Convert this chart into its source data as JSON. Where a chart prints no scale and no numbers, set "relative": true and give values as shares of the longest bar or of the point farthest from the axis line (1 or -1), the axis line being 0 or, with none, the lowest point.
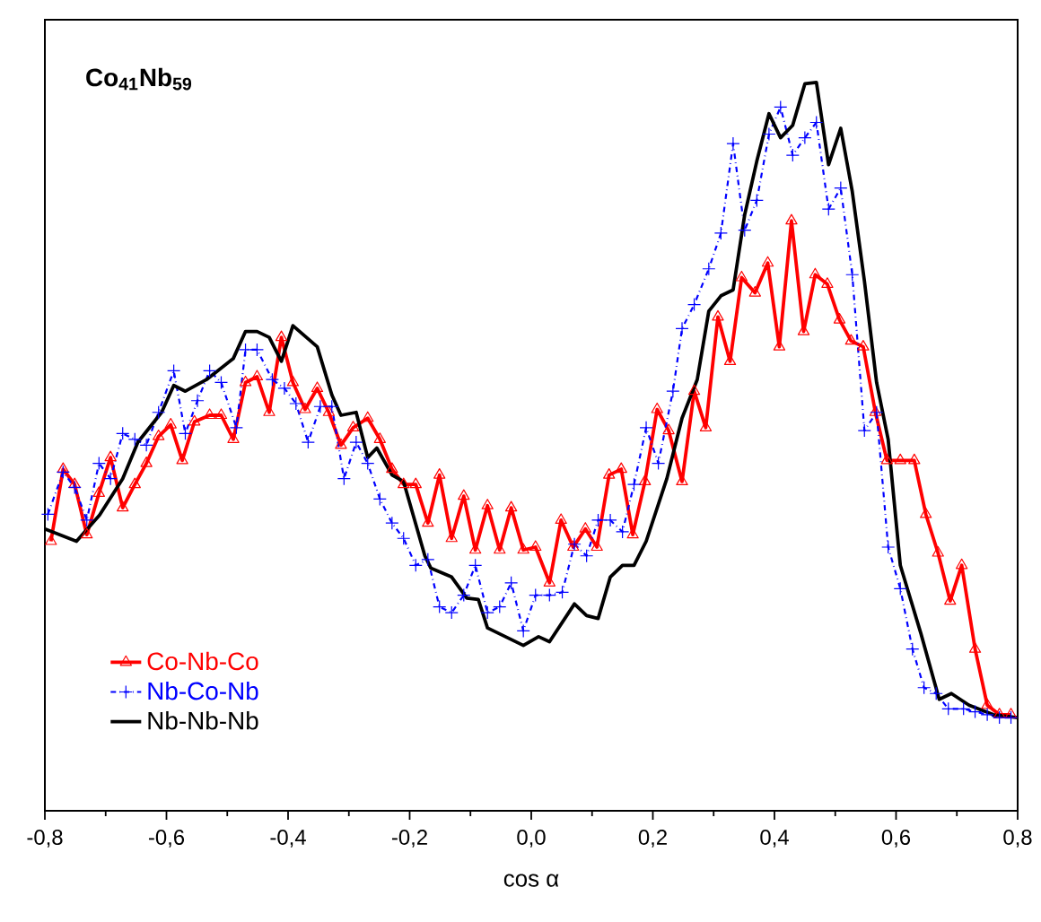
{
  "chart_data": {
    "type": "line",
    "title": "Co$_{41}$Nb$_{59}$",
    "xlabel": "cos α",
    "relative": true,
    "xlim": [
      -0.8,
      0.8
    ],
    "xticks": [
      {
        "value": -0.8,
        "label": "-0,8"
      },
      {
        "value": -0.6,
        "label": "-0,6"
      },
      {
        "value": -0.4,
        "label": "-0,4"
      },
      {
        "value": -0.2,
        "label": "-0,2"
      },
      {
        "value": 0,
        "label": "0,0"
      },
      {
        "value": 0.2,
        "label": "0,2"
      },
      {
        "value": 0.4,
        "label": "0,4"
      },
      {
        "value": 0.6,
        "label": "0,6"
      },
      {
        "value": 0.8,
        "label": "0,8"
      }
    ],
    "tick_labels": "x",
    "legend": "bottom left",
    "series": [
      {
        "name": "Co-Nb-Co",
        "color": "#ff0000",
        "marker": "triangle",
        "line_style": "solid",
        "x": [
          -0.79,
          -0.77,
          -0.751,
          -0.731,
          -0.711,
          -0.692,
          -0.672,
          -0.652,
          -0.633,
          -0.613,
          -0.593,
          -0.574,
          -0.554,
          -0.529,
          -0.51,
          -0.49,
          -0.47,
          -0.451,
          -0.431,
          -0.411,
          -0.392,
          -0.372,
          -0.352,
          -0.333,
          -0.313,
          -0.293,
          -0.269,
          -0.249,
          -0.229,
          -0.21,
          -0.19,
          -0.17,
          -0.151,
          -0.131,
          -0.111,
          -0.092,
          -0.072,
          -0.052,
          -0.033,
          -0.013,
          0.007,
          0.03,
          0.049,
          0.069,
          0.089,
          0.108,
          0.128,
          0.148,
          0.167,
          0.187,
          0.207,
          0.226,
          0.248,
          0.268,
          0.287,
          0.307,
          0.327,
          0.346,
          0.368,
          0.389,
          0.408,
          0.428,
          0.448,
          0.467,
          0.487,
          0.507,
          0.526,
          0.546,
          0.566,
          0.585,
          0.607,
          0.63,
          0.649,
          0.669,
          0.689,
          0.708,
          0.73,
          0.75,
          0.77,
          0.789
        ],
        "values": [
          0.37,
          0.469,
          0.448,
          0.379,
          0.436,
          0.485,
          0.416,
          0.448,
          0.477,
          0.514,
          0.53,
          0.481,
          0.534,
          0.543,
          0.543,
          0.51,
          0.588,
          0.596,
          0.547,
          0.65,
          0.588,
          0.551,
          0.58,
          0.547,
          0.502,
          0.526,
          0.539,
          0.51,
          0.469,
          0.448,
          0.448,
          0.395,
          0.461,
          0.374,
          0.432,
          0.358,
          0.419,
          0.358,
          0.416,
          0.358,
          0.362,
          0.313,
          0.399,
          0.362,
          0.387,
          0.362,
          0.461,
          0.469,
          0.379,
          0.452,
          0.551,
          0.522,
          0.452,
          0.576,
          0.526,
          0.678,
          0.617,
          0.732,
          0.711,
          0.752,
          0.637,
          0.81,
          0.658,
          0.736,
          0.723,
          0.674,
          0.645,
          0.637,
          0.547,
          0.481,
          0.481,
          0.481,
          0.407,
          0.354,
          0.288,
          0.337,
          0.222,
          0.145,
          0.132,
          0.132
        ]
      },
      {
        "name": "Nb-Co-Nb",
        "color": "#0000ff",
        "marker": "cross",
        "line_style": "dashed",
        "x": [
          -0.795,
          -0.77,
          -0.751,
          -0.731,
          -0.711,
          -0.692,
          -0.672,
          -0.652,
          -0.633,
          -0.613,
          -0.588,
          -0.569,
          -0.549,
          -0.529,
          -0.51,
          -0.485,
          -0.47,
          -0.451,
          -0.426,
          -0.406,
          -0.387,
          -0.367,
          -0.347,
          -0.328,
          -0.308,
          -0.288,
          -0.269,
          -0.249,
          -0.229,
          -0.21,
          -0.19,
          -0.17,
          -0.151,
          -0.131,
          -0.111,
          -0.092,
          -0.072,
          -0.052,
          -0.033,
          -0.013,
          0.007,
          0.03,
          0.051,
          0.071,
          0.091,
          0.11,
          0.13,
          0.15,
          0.169,
          0.189,
          0.209,
          0.233,
          0.248,
          0.268,
          0.292,
          0.312,
          0.332,
          0.351,
          0.371,
          0.391,
          0.41,
          0.43,
          0.45,
          0.469,
          0.489,
          0.509,
          0.528,
          0.548,
          0.568,
          0.587,
          0.607,
          0.627,
          0.646,
          0.666,
          0.686,
          0.711,
          0.73,
          0.75,
          0.77,
          0.789
        ],
        "values": [
          0.407,
          0.465,
          0.444,
          0.399,
          0.477,
          0.456,
          0.518,
          0.51,
          0.502,
          0.547,
          0.604,
          0.518,
          0.563,
          0.604,
          0.588,
          0.526,
          0.633,
          0.633,
          0.592,
          0.58,
          0.559,
          0.506,
          0.555,
          0.555,
          0.456,
          0.506,
          0.477,
          0.428,
          0.395,
          0.374,
          0.337,
          0.345,
          0.28,
          0.272,
          0.296,
          0.337,
          0.272,
          0.28,
          0.313,
          0.247,
          0.296,
          0.296,
          0.3,
          0.366,
          0.35,
          0.399,
          0.399,
          0.383,
          0.448,
          0.526,
          0.477,
          0.576,
          0.662,
          0.695,
          0.744,
          0.793,
          0.916,
          0.797,
          0.838,
          0.929,
          0.966,
          0.9,
          0.924,
          0.945,
          0.826,
          0.855,
          0.736,
          0.522,
          0.547,
          0.362,
          0.305,
          0.222,
          0.169,
          0.161,
          0.14,
          0.14,
          0.136,
          0.132,
          0.128,
          0.128
        ]
      },
      {
        "name": "Nb-Nb-Nb",
        "color": "#000000",
        "marker": "none",
        "line_style": "solid",
        "x": [
          -0.8,
          -0.748,
          -0.71,
          -0.672,
          -0.647,
          -0.608,
          -0.588,
          -0.569,
          -0.534,
          -0.49,
          -0.47,
          -0.451,
          -0.431,
          -0.411,
          -0.392,
          -0.352,
          -0.328,
          -0.313,
          -0.288,
          -0.269,
          -0.254,
          -0.229,
          -0.21,
          -0.175,
          -0.165,
          -0.131,
          -0.106,
          -0.087,
          -0.072,
          -0.013,
          0.012,
          0.03,
          0.071,
          0.091,
          0.11,
          0.13,
          0.15,
          0.169,
          0.189,
          0.223,
          0.248,
          0.273,
          0.292,
          0.312,
          0.332,
          0.351,
          0.371,
          0.391,
          0.41,
          0.43,
          0.45,
          0.469,
          0.489,
          0.509,
          0.528,
          0.548,
          0.568,
          0.587,
          0.607,
          0.641,
          0.671,
          0.691,
          0.72,
          0.76,
          0.8
        ],
        "values": [
          0.387,
          0.37,
          0.406,
          0.456,
          0.506,
          0.547,
          0.584,
          0.576,
          0.592,
          0.621,
          0.658,
          0.658,
          0.65,
          0.617,
          0.666,
          0.637,
          0.571,
          0.543,
          0.547,
          0.485,
          0.498,
          0.461,
          0.452,
          0.35,
          0.333,
          0.321,
          0.292,
          0.29,
          0.251,
          0.227,
          0.239,
          0.232,
          0.284,
          0.268,
          0.264,
          0.321,
          0.337,
          0.337,
          0.37,
          0.456,
          0.539,
          0.592,
          0.686,
          0.707,
          0.715,
          0.818,
          0.892,
          0.957,
          0.924,
          0.941,
          0.998,
          1,
          0.887,
          0.937,
          0.85,
          0.727,
          0.588,
          0.51,
          0.337,
          0.243,
          0.153,
          0.161,
          0.145,
          0.132,
          0.128
        ]
      }
    ]
  }
}
